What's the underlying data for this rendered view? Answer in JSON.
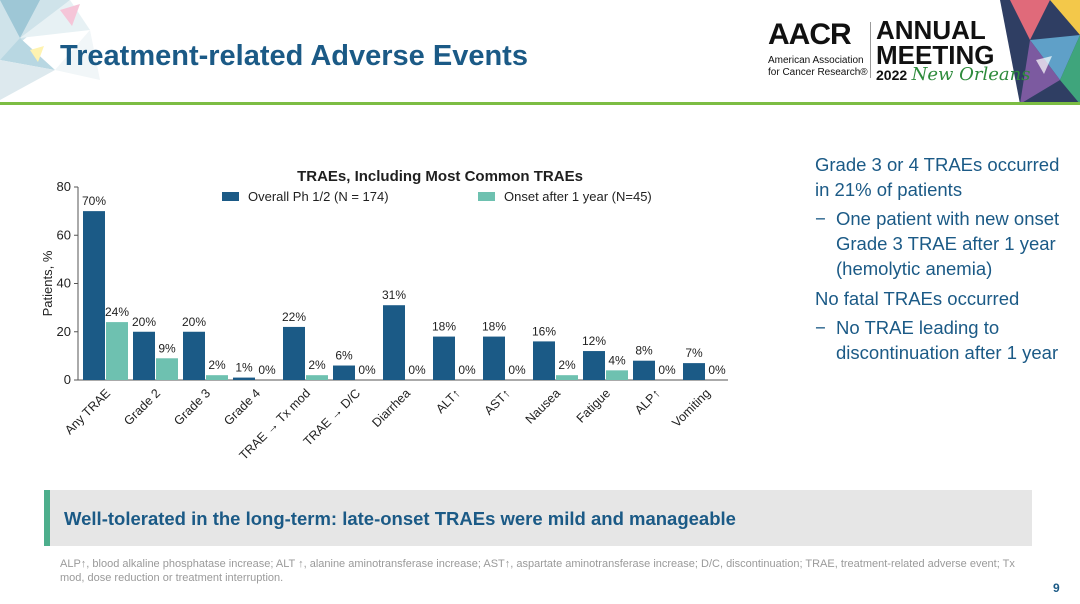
{
  "header": {
    "title": "Treatment-related Adverse Events",
    "logo_word": "AACR",
    "logo_sub_line1": "American Association",
    "logo_sub_line2": "for Cancer Research®",
    "meeting_line1": "ANNUAL",
    "meeting_line2": "MEETING",
    "meeting_year": "2022",
    "meeting_city": "New Orleans"
  },
  "bullets": {
    "p1": "Grade 3 or 4 TRAEs occurred in 21% of patients",
    "dash": "−",
    "s1": "One patient with new onset Grade 3 TRAE after 1 year (hemolytic anemia)",
    "p2": "No fatal TRAEs occurred",
    "s2": "No TRAE leading to discontinuation after 1 year"
  },
  "callout": "Well-tolerated in the long-term: late-onset TRAEs were mild and manageable",
  "footnote": "ALP↑, blood alkaline phosphatase increase; ALT ↑, alanine aminotransferase increase; AST↑, aspartate aminotransferase increase; D/C, discontinuation; TRAE, treatment-related adverse event; Tx mod, dose reduction or treatment interruption.",
  "page_number": "9",
  "colors": {
    "series1": "#1b5a86",
    "series2": "#6ec1b0",
    "accent_green": "#7cbd43",
    "callout_bar": "#4dae8c",
    "text_blue": "#1b5a86"
  },
  "chart_data": {
    "type": "bar",
    "title": "TRAEs, Including Most Common TRAEs",
    "xlabel": "",
    "ylabel": "Patients, %",
    "ylim": [
      0,
      80
    ],
    "yticks": [
      0,
      20,
      40,
      60,
      80
    ],
    "grid": false,
    "legend_position": "top",
    "categories": [
      "Any TRAE",
      "Grade 2",
      "Grade 3",
      "Grade 4",
      "TRAE → Tx mod",
      "TRAE → D/C",
      "Diarrhea",
      "ALT↑",
      "AST↑",
      "Nausea",
      "Fatigue",
      "ALP↑",
      "Vomiting"
    ],
    "series": [
      {
        "name": "Overall Ph 1/2 (N = 174)",
        "values": [
          70,
          20,
          20,
          1,
          22,
          6,
          31,
          18,
          18,
          16,
          12,
          8,
          7
        ],
        "labels": [
          "70%",
          "20%",
          "20%",
          "1%",
          "22%",
          "6%",
          "31%",
          "18%",
          "18%",
          "16%",
          "12%",
          "8%",
          "7%"
        ]
      },
      {
        "name": "Onset after 1 year (N=45)",
        "values": [
          24,
          9,
          2,
          0,
          2,
          0,
          0,
          0,
          0,
          2,
          4,
          0,
          0
        ],
        "labels": [
          "24%",
          "9%",
          "2%",
          "0%",
          "2%",
          "0%",
          "0%",
          "0%",
          "0%",
          "2%",
          "4%",
          "0%",
          "0%"
        ]
      }
    ]
  }
}
